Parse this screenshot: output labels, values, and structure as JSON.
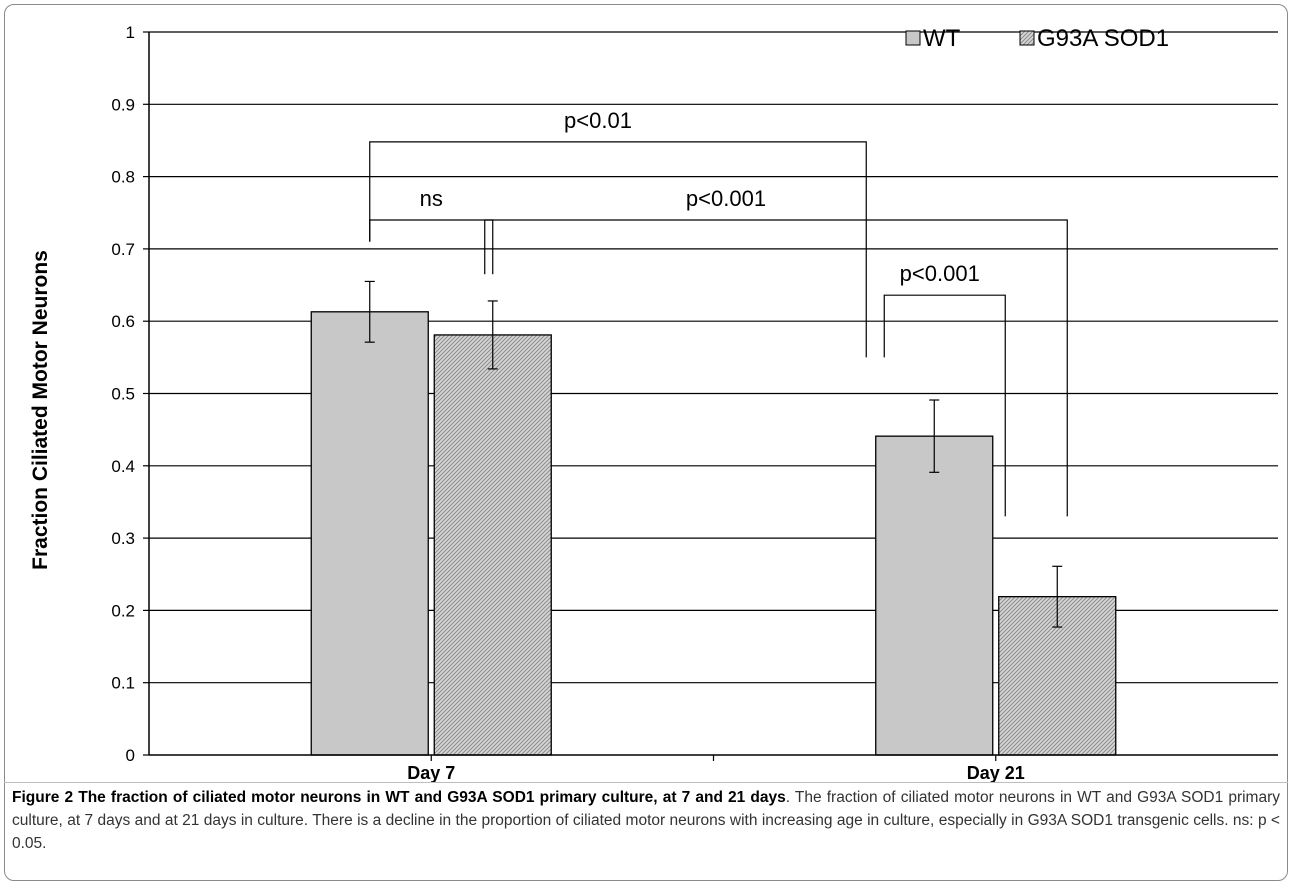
{
  "chart_data": {
    "type": "bar",
    "categories": [
      "Day 7",
      "Day 21"
    ],
    "series": [
      {
        "name": "WT",
        "values": [
          0.613,
          0.441
        ],
        "errors": [
          0.042,
          0.05
        ],
        "fill": "#c8c8c8",
        "pattern": "solid"
      },
      {
        "name": "G93A SOD1",
        "values": [
          0.581,
          0.219
        ],
        "errors": [
          0.047,
          0.042
        ],
        "fill": "#c8c8c8",
        "pattern": "diagonal-hatch"
      }
    ],
    "ylabel": "Fraction Ciliated Motor Neurons",
    "xlabel": "",
    "ylim": [
      0,
      1
    ],
    "yticks": [
      "0",
      "0.1",
      "0.2",
      "0.3",
      "0.4",
      "0.5",
      "0.6",
      "0.7",
      "0.8",
      "0.9",
      "1"
    ],
    "grid": true,
    "legend_position": "top-right",
    "annotations": [
      {
        "label": "ns",
        "from": [
          "Day 7",
          "WT"
        ],
        "to": [
          "Day 7",
          "G93A SOD1"
        ]
      },
      {
        "label": "p<0.01",
        "from": [
          "Day 7",
          "WT"
        ],
        "to": [
          "Day 21",
          "WT"
        ]
      },
      {
        "label": "p<0.001",
        "from": [
          "Day 7",
          "G93A SOD1"
        ],
        "to": [
          "Day 21",
          "G93A SOD1"
        ]
      },
      {
        "label": "p<0.001",
        "from": [
          "Day 21",
          "WT"
        ],
        "to": [
          "Day 21",
          "G93A SOD1"
        ]
      }
    ]
  },
  "caption": {
    "title": "Figure 2 The fraction of ciliated motor neurons in WT and G93A SOD1 primary culture, at 7 and 21 days",
    "body": ". The fraction of ciliated motor neurons in WT and G93A SOD1 primary culture, at 7 days and at 21 days in culture. There is a decline in the proportion of ciliated motor neurons with increasing age in culture, especially in G93A SOD1 transgenic cells. ns: p < 0.05."
  }
}
